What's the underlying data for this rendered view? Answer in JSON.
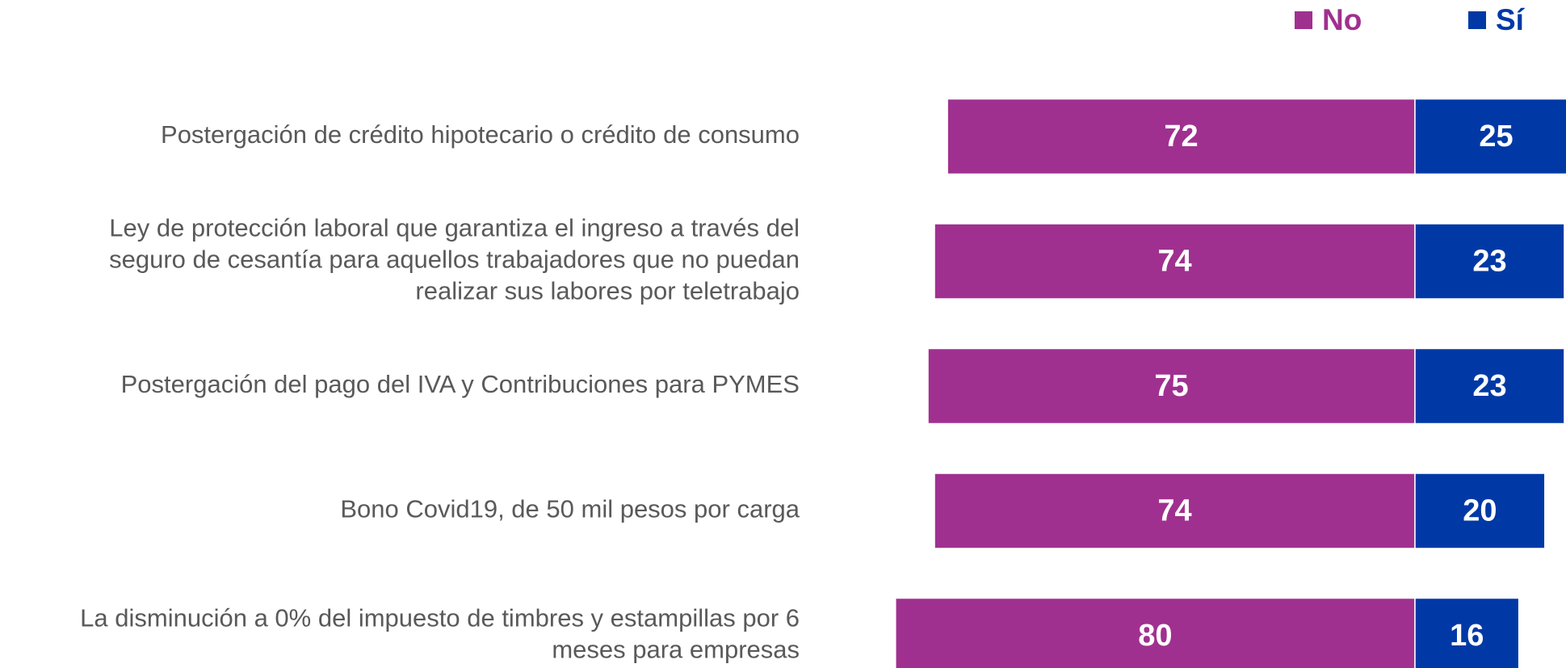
{
  "chart_data": {
    "type": "diverging-bar",
    "categories": [
      "Postergación de crédito hipotecario o crédito de consumo",
      "Ley de protección laboral que garantiza el ingreso a través del\nseguro de cesantía para aquellos trabajadores que no puedan\nrealizar sus labores por teletrabajo",
      "Postergación del pago del IVA y Contribuciones para PYMES",
      "Bono Covid19, de 50 mil pesos por carga",
      "La disminución a 0% del impuesto de timbres y estampillas por 6\nmeses para empresas"
    ],
    "series": [
      {
        "name": "No",
        "color": "#a0308f",
        "values": [
          72,
          74,
          75,
          74,
          80
        ]
      },
      {
        "name": "Sí",
        "color": "#0039a6",
        "values": [
          25,
          23,
          23,
          20,
          16
        ]
      }
    ],
    "legend": "top-right"
  }
}
